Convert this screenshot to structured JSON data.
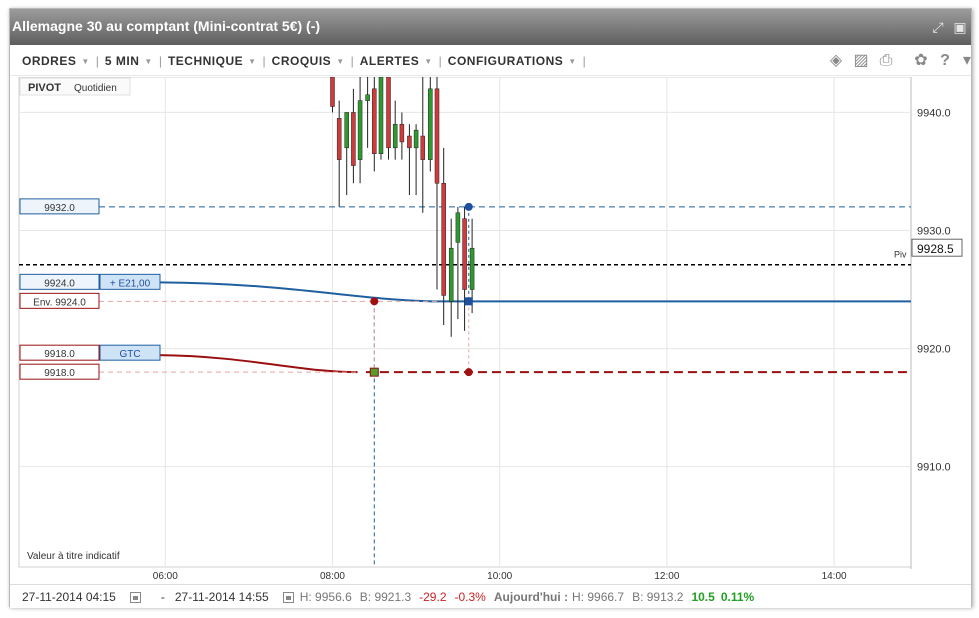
{
  "window": {
    "title": "Allemagne 30 au comptant (Mini-contrat 5€) (-)"
  },
  "toolbar": {
    "menus": [
      "ORDRES",
      "5 MIN",
      "TECHNIQUE",
      "CROQUIS",
      "ALERTES",
      "CONFIGURATIONS"
    ],
    "icons": [
      "layers-icon",
      "image-icon",
      "print-icon",
      "gear-icon",
      "help-icon",
      "pin-icon"
    ]
  },
  "chart": {
    "pivot_label": "PIVOT",
    "pivot_period": "Quotidien",
    "pivot_tag": "Piv",
    "current_price": "9928.5",
    "disclaimer": "Valeur à titre indicatif",
    "order_tags": {
      "limit_price": "9932.0",
      "position_price": "9924.0",
      "position_pnl": "+ E21,00",
      "env_price": "Env. 9924.0",
      "gtc_price": "9918.0",
      "gtc_label": "GTC",
      "stop_price": "9918.0"
    },
    "colors": {
      "blue": "#1f5f9f",
      "red": "#9a1010",
      "pivot": "#000000"
    }
  },
  "chart_data": {
    "type": "candlestick",
    "x_ticks": [
      "06:00",
      "08:00",
      "10:00",
      "12:00",
      "14:00"
    ],
    "y_ticks": [
      "9940.0",
      "9930.0",
      "9920.0",
      "9910.0"
    ],
    "ylim": [
      9901.5,
      9943
    ],
    "xlim_hours": [
      4.25,
      14.92
    ],
    "pivot_level": 9927.1,
    "current_price": 9928.5,
    "limit_order_level": 9932.0,
    "position_level": 9924.0,
    "stop_level": 9918.0,
    "candles": [
      {
        "t": 8.0,
        "o": 9943.0,
        "h": 9943.0,
        "l": 9940.0,
        "c": 9940.5
      },
      {
        "t": 8.08,
        "o": 9939.5,
        "h": 9941.0,
        "l": 9932.0,
        "c": 9936.0
      },
      {
        "t": 8.17,
        "o": 9937.0,
        "h": 9940.0,
        "l": 9933.0,
        "c": 9940.0
      },
      {
        "t": 8.25,
        "o": 9940.0,
        "h": 9942.0,
        "l": 9934.0,
        "c": 9935.5
      },
      {
        "t": 8.33,
        "o": 9936.0,
        "h": 9943.0,
        "l": 9934.0,
        "c": 9941.0
      },
      {
        "t": 8.42,
        "o": 9941.0,
        "h": 9943.0,
        "l": 9937.0,
        "c": 9941.5
      },
      {
        "t": 8.5,
        "o": 9942.0,
        "h": 9943.0,
        "l": 9935.0,
        "c": 9936.5
      },
      {
        "t": 8.58,
        "o": 9936.5,
        "h": 9943.0,
        "l": 9936.0,
        "c": 9943.0
      },
      {
        "t": 8.67,
        "o": 9943.0,
        "h": 9943.0,
        "l": 9936.0,
        "c": 9937.0
      },
      {
        "t": 8.75,
        "o": 9937.0,
        "h": 9941.0,
        "l": 9936.0,
        "c": 9939.0
      },
      {
        "t": 8.83,
        "o": 9939.0,
        "h": 9940.0,
        "l": 9936.0,
        "c": 9937.5
      },
      {
        "t": 8.92,
        "o": 9938.0,
        "h": 9939.0,
        "l": 9933.0,
        "c": 9937.0
      },
      {
        "t": 9.0,
        "o": 9937.0,
        "h": 9939.0,
        "l": 9933.0,
        "c": 9938.5
      },
      {
        "t": 9.08,
        "o": 9938.0,
        "h": 9943.0,
        "l": 9931.5,
        "c": 9936.0
      },
      {
        "t": 9.17,
        "o": 9936.0,
        "h": 9943.0,
        "l": 9935.0,
        "c": 9942.0
      },
      {
        "t": 9.25,
        "o": 9942.0,
        "h": 9943.0,
        "l": 9925.0,
        "c": 9934.0
      },
      {
        "t": 9.33,
        "o": 9934.0,
        "h": 9937.0,
        "l": 9922.0,
        "c": 9924.5
      },
      {
        "t": 9.42,
        "o": 9924.0,
        "h": 9931.0,
        "l": 9921.0,
        "c": 9928.5
      },
      {
        "t": 9.5,
        "o": 9929.0,
        "h": 9932.0,
        "l": 9922.5,
        "c": 9931.5
      },
      {
        "t": 9.58,
        "o": 9931.0,
        "h": 9932.0,
        "l": 9921.5,
        "c": 9925.0
      },
      {
        "t": 9.67,
        "o": 9925.0,
        "h": 9931.0,
        "l": 9923.0,
        "c": 9928.5
      }
    ]
  },
  "status": {
    "start_date": "27-11-2014 04:15",
    "end_date": "27-11-2014 14:55",
    "high": "H: 9956.6",
    "low": "B: 9921.3",
    "change": "-29.2",
    "change_pct": "-0.3%",
    "today_label": "Aujourd'hui :",
    "today_high": "H: 9966.7",
    "today_low": "B: 9913.2",
    "today_change": "10.5",
    "today_change_pct": "0.11%"
  }
}
